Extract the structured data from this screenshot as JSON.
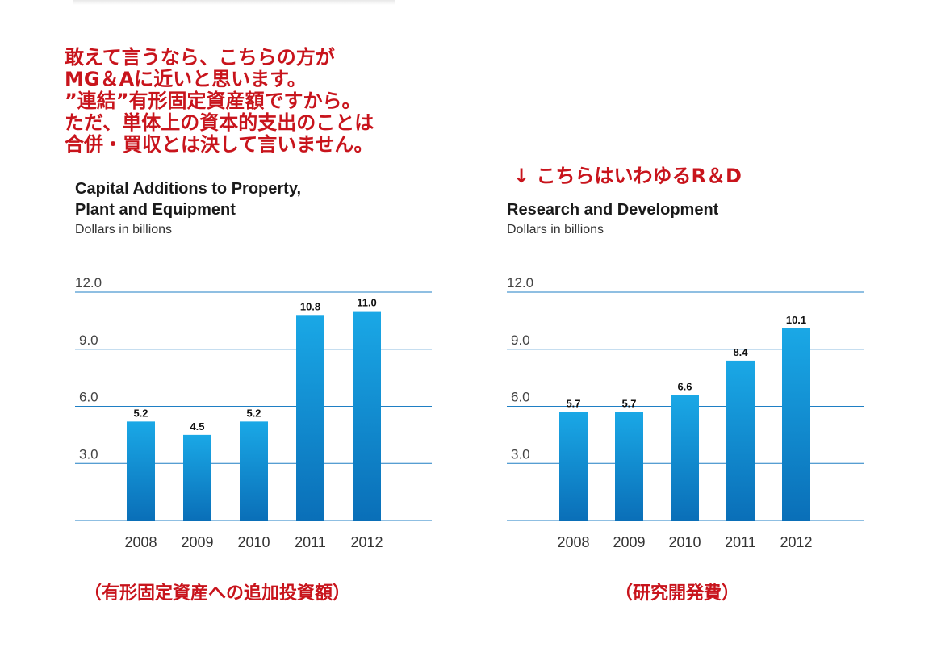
{
  "note": {
    "lines": [
      "敢えて言うなら、こちらの方が",
      "MG＆Aに近いと思います。",
      "”連結”有形固定資産額ですから。",
      "ただ、単体上の資本的支出のことは",
      "合併・買収とは決して言いません。"
    ]
  },
  "rd_note": "↓ こちらはいわゆるR＆D",
  "captions": {
    "left": "（有形固定資産への追加投資額）",
    "right": "（研究開発費）"
  },
  "colors": {
    "annotation": "#c8141c",
    "bar_top": "#1aa8e6",
    "bar_bottom": "#0a6fb8",
    "gridline": "#1f7fc4"
  },
  "chart_data": [
    {
      "type": "bar",
      "title_lines": [
        "Capital Additions to Property,",
        "Plant and Equipment"
      ],
      "subtitle": "Dollars in billions",
      "categories": [
        "2008",
        "2009",
        "2010",
        "2011",
        "2012"
      ],
      "values": [
        5.2,
        4.5,
        5.2,
        10.8,
        11.0
      ],
      "value_labels": [
        "5.2",
        "4.5",
        "5.2",
        "10.8",
        "11.0"
      ],
      "yticks": [
        "12.0",
        "9.0",
        "6.0",
        "3.0"
      ],
      "ylim": [
        0,
        12
      ],
      "grid": true
    },
    {
      "type": "bar",
      "title_lines": [
        "Research and Development"
      ],
      "subtitle": "Dollars in billions",
      "categories": [
        "2008",
        "2009",
        "2010",
        "2011",
        "2012"
      ],
      "values": [
        5.7,
        5.7,
        6.6,
        8.4,
        10.1
      ],
      "value_labels": [
        "5.7",
        "5.7",
        "6.6",
        "8.4",
        "10.1"
      ],
      "yticks": [
        "12.0",
        "9.0",
        "6.0",
        "3.0"
      ],
      "ylim": [
        0,
        12
      ],
      "grid": true
    }
  ]
}
